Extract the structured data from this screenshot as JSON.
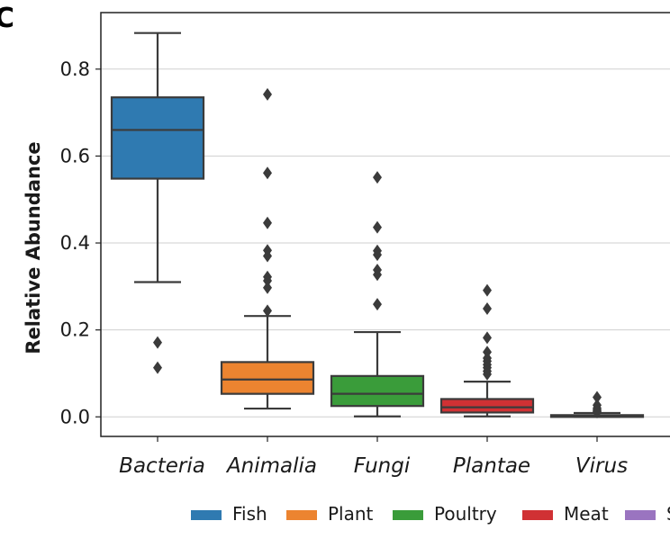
{
  "panel_label": "C",
  "chart_data": {
    "type": "box",
    "title": "",
    "xlabel": "",
    "ylabel": "Relative Abundance",
    "ylim": [
      -0.045,
      0.93
    ],
    "yticks": [
      0.0,
      0.2,
      0.4,
      0.6,
      0.8
    ],
    "ytick_labels": [
      "0.0",
      "0.2",
      "0.4",
      "0.6",
      "0.8"
    ],
    "grid": "horizontal",
    "categories": [
      "Bacteria",
      "Animalia",
      "Fungi",
      "Plantae",
      "Virus"
    ],
    "boxes": [
      {
        "category": "Bacteria",
        "color": "#2f7ab1",
        "whisker_low": 0.31,
        "q1": 0.548,
        "median": 0.66,
        "q3": 0.735,
        "whisker_high": 0.883,
        "outliers": [
          0.171,
          0.113
        ]
      },
      {
        "category": "Animalia",
        "color": "#ec8430",
        "whisker_low": 0.019,
        "q1": 0.053,
        "median": 0.086,
        "q3": 0.126,
        "whisker_high": 0.232,
        "outliers": [
          0.742,
          0.561,
          0.446,
          0.383,
          0.37,
          0.322,
          0.313,
          0.297,
          0.244
        ]
      },
      {
        "category": "Fungi",
        "color": "#3a9c3a",
        "whisker_low": 0.001,
        "q1": 0.025,
        "median": 0.053,
        "q3": 0.094,
        "whisker_high": 0.195,
        "outliers": [
          0.551,
          0.436,
          0.382,
          0.373,
          0.338,
          0.327,
          0.259
        ]
      },
      {
        "category": "Plantae",
        "color": "#d03134",
        "whisker_low": 0.001,
        "q1": 0.01,
        "median": 0.022,
        "q3": 0.041,
        "whisker_high": 0.081,
        "outliers": [
          0.291,
          0.249,
          0.182,
          0.149,
          0.135,
          0.128,
          0.12,
          0.113,
          0.105,
          0.098
        ]
      },
      {
        "category": "Virus",
        "color": "#9a74c0",
        "whisker_low": 0.0,
        "q1": 0.0,
        "median": 0.001,
        "q3": 0.004,
        "whisker_high": 0.009,
        "outliers": [
          0.045,
          0.027,
          0.02,
          0.016,
          0.013,
          0.011
        ]
      }
    ],
    "legend": {
      "placement": "bottom",
      "entries": [
        {
          "label": "Fish",
          "color": "#2f7ab1"
        },
        {
          "label": "Plant",
          "color": "#ec8430"
        },
        {
          "label": "Poultry",
          "color": "#3a9c3a"
        },
        {
          "label": "Meat",
          "color": "#d03134"
        },
        {
          "label": "Seafood",
          "color": "#9a74c0"
        }
      ]
    }
  }
}
